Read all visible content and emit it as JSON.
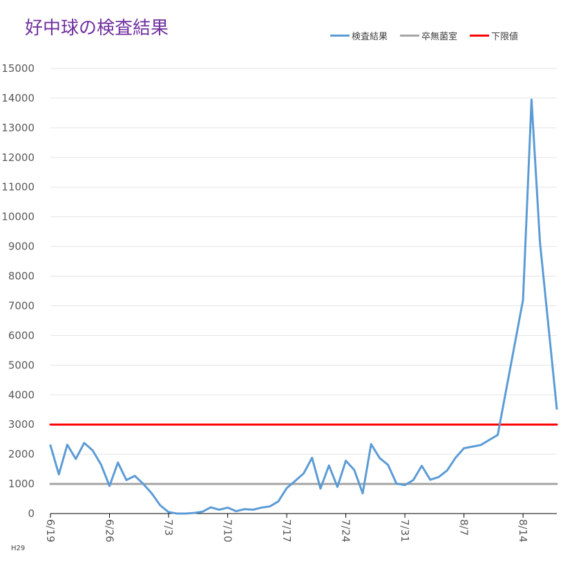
{
  "chart_data": {
    "type": "line",
    "title": "好中球の検査結果",
    "xlabel": "",
    "ylabel": "",
    "ylim": [
      0,
      15000
    ],
    "yticks": [
      0,
      1000,
      2000,
      3000,
      4000,
      5000,
      6000,
      7000,
      8000,
      9000,
      10000,
      11000,
      12000,
      13000,
      14000,
      15000
    ],
    "x_start": "6/19",
    "x_end": "8/18",
    "xticks": [
      "6/19",
      "6/26",
      "7/3",
      "7/10",
      "7/17",
      "7/24",
      "7/31",
      "8/7",
      "8/14"
    ],
    "grid": true,
    "legend_position": "top-right",
    "series": [
      {
        "name": "検査結果",
        "color": "#5b9bd5",
        "points": [
          [
            "6/19",
            2300
          ],
          [
            "6/20",
            1320
          ],
          [
            "6/21",
            2320
          ],
          [
            "6/22",
            1840
          ],
          [
            "6/23",
            2380
          ],
          [
            "6/24",
            2130
          ],
          [
            "6/25",
            1650
          ],
          [
            "6/26",
            930
          ],
          [
            "6/27",
            1720
          ],
          [
            "6/28",
            1130
          ],
          [
            "6/29",
            1270
          ],
          [
            "6/30",
            1000
          ],
          [
            "7/1",
            680
          ],
          [
            "7/2",
            280
          ],
          [
            "7/3",
            50
          ],
          [
            "7/4",
            0
          ],
          [
            "7/5",
            0
          ],
          [
            "7/6",
            20
          ],
          [
            "7/7",
            60
          ],
          [
            "7/8",
            210
          ],
          [
            "7/9",
            130
          ],
          [
            "7/10",
            200
          ],
          [
            "7/11",
            80
          ],
          [
            "7/12",
            150
          ],
          [
            "7/13",
            130
          ],
          [
            "7/14",
            200
          ],
          [
            "7/15",
            240
          ],
          [
            "7/16",
            410
          ],
          [
            "7/17",
            860
          ],
          [
            "7/18",
            1100
          ],
          [
            "7/19",
            1350
          ],
          [
            "7/20",
            1880
          ],
          [
            "7/21",
            840
          ],
          [
            "7/22",
            1620
          ],
          [
            "7/23",
            900
          ],
          [
            "7/24",
            1780
          ],
          [
            "7/25",
            1470
          ],
          [
            "7/26",
            680
          ],
          [
            "7/27",
            2340
          ],
          [
            "7/28",
            1870
          ],
          [
            "7/29",
            1640
          ],
          [
            "7/30",
            1010
          ],
          [
            "7/31",
            960
          ],
          [
            "8/1",
            1130
          ],
          [
            "8/2",
            1610
          ],
          [
            "8/3",
            1140
          ],
          [
            "8/4",
            1230
          ],
          [
            "8/5",
            1450
          ],
          [
            "8/6",
            1880
          ],
          [
            "8/7",
            2200
          ],
          [
            "8/9",
            2310
          ],
          [
            "8/11",
            2650
          ],
          [
            "8/14",
            7200
          ],
          [
            "8/15",
            13950
          ],
          [
            "8/16",
            9150
          ],
          [
            "8/18",
            3530
          ]
        ]
      },
      {
        "name": "卒無菌室",
        "color": "#a5a5a5",
        "points": [
          [
            "6/19",
            1000
          ],
          [
            "8/18",
            1000
          ]
        ]
      },
      {
        "name": "下限値",
        "color": "#ff0000",
        "points": [
          [
            "6/19",
            3000
          ],
          [
            "8/18",
            3000
          ]
        ]
      }
    ],
    "footnote": "H29"
  }
}
